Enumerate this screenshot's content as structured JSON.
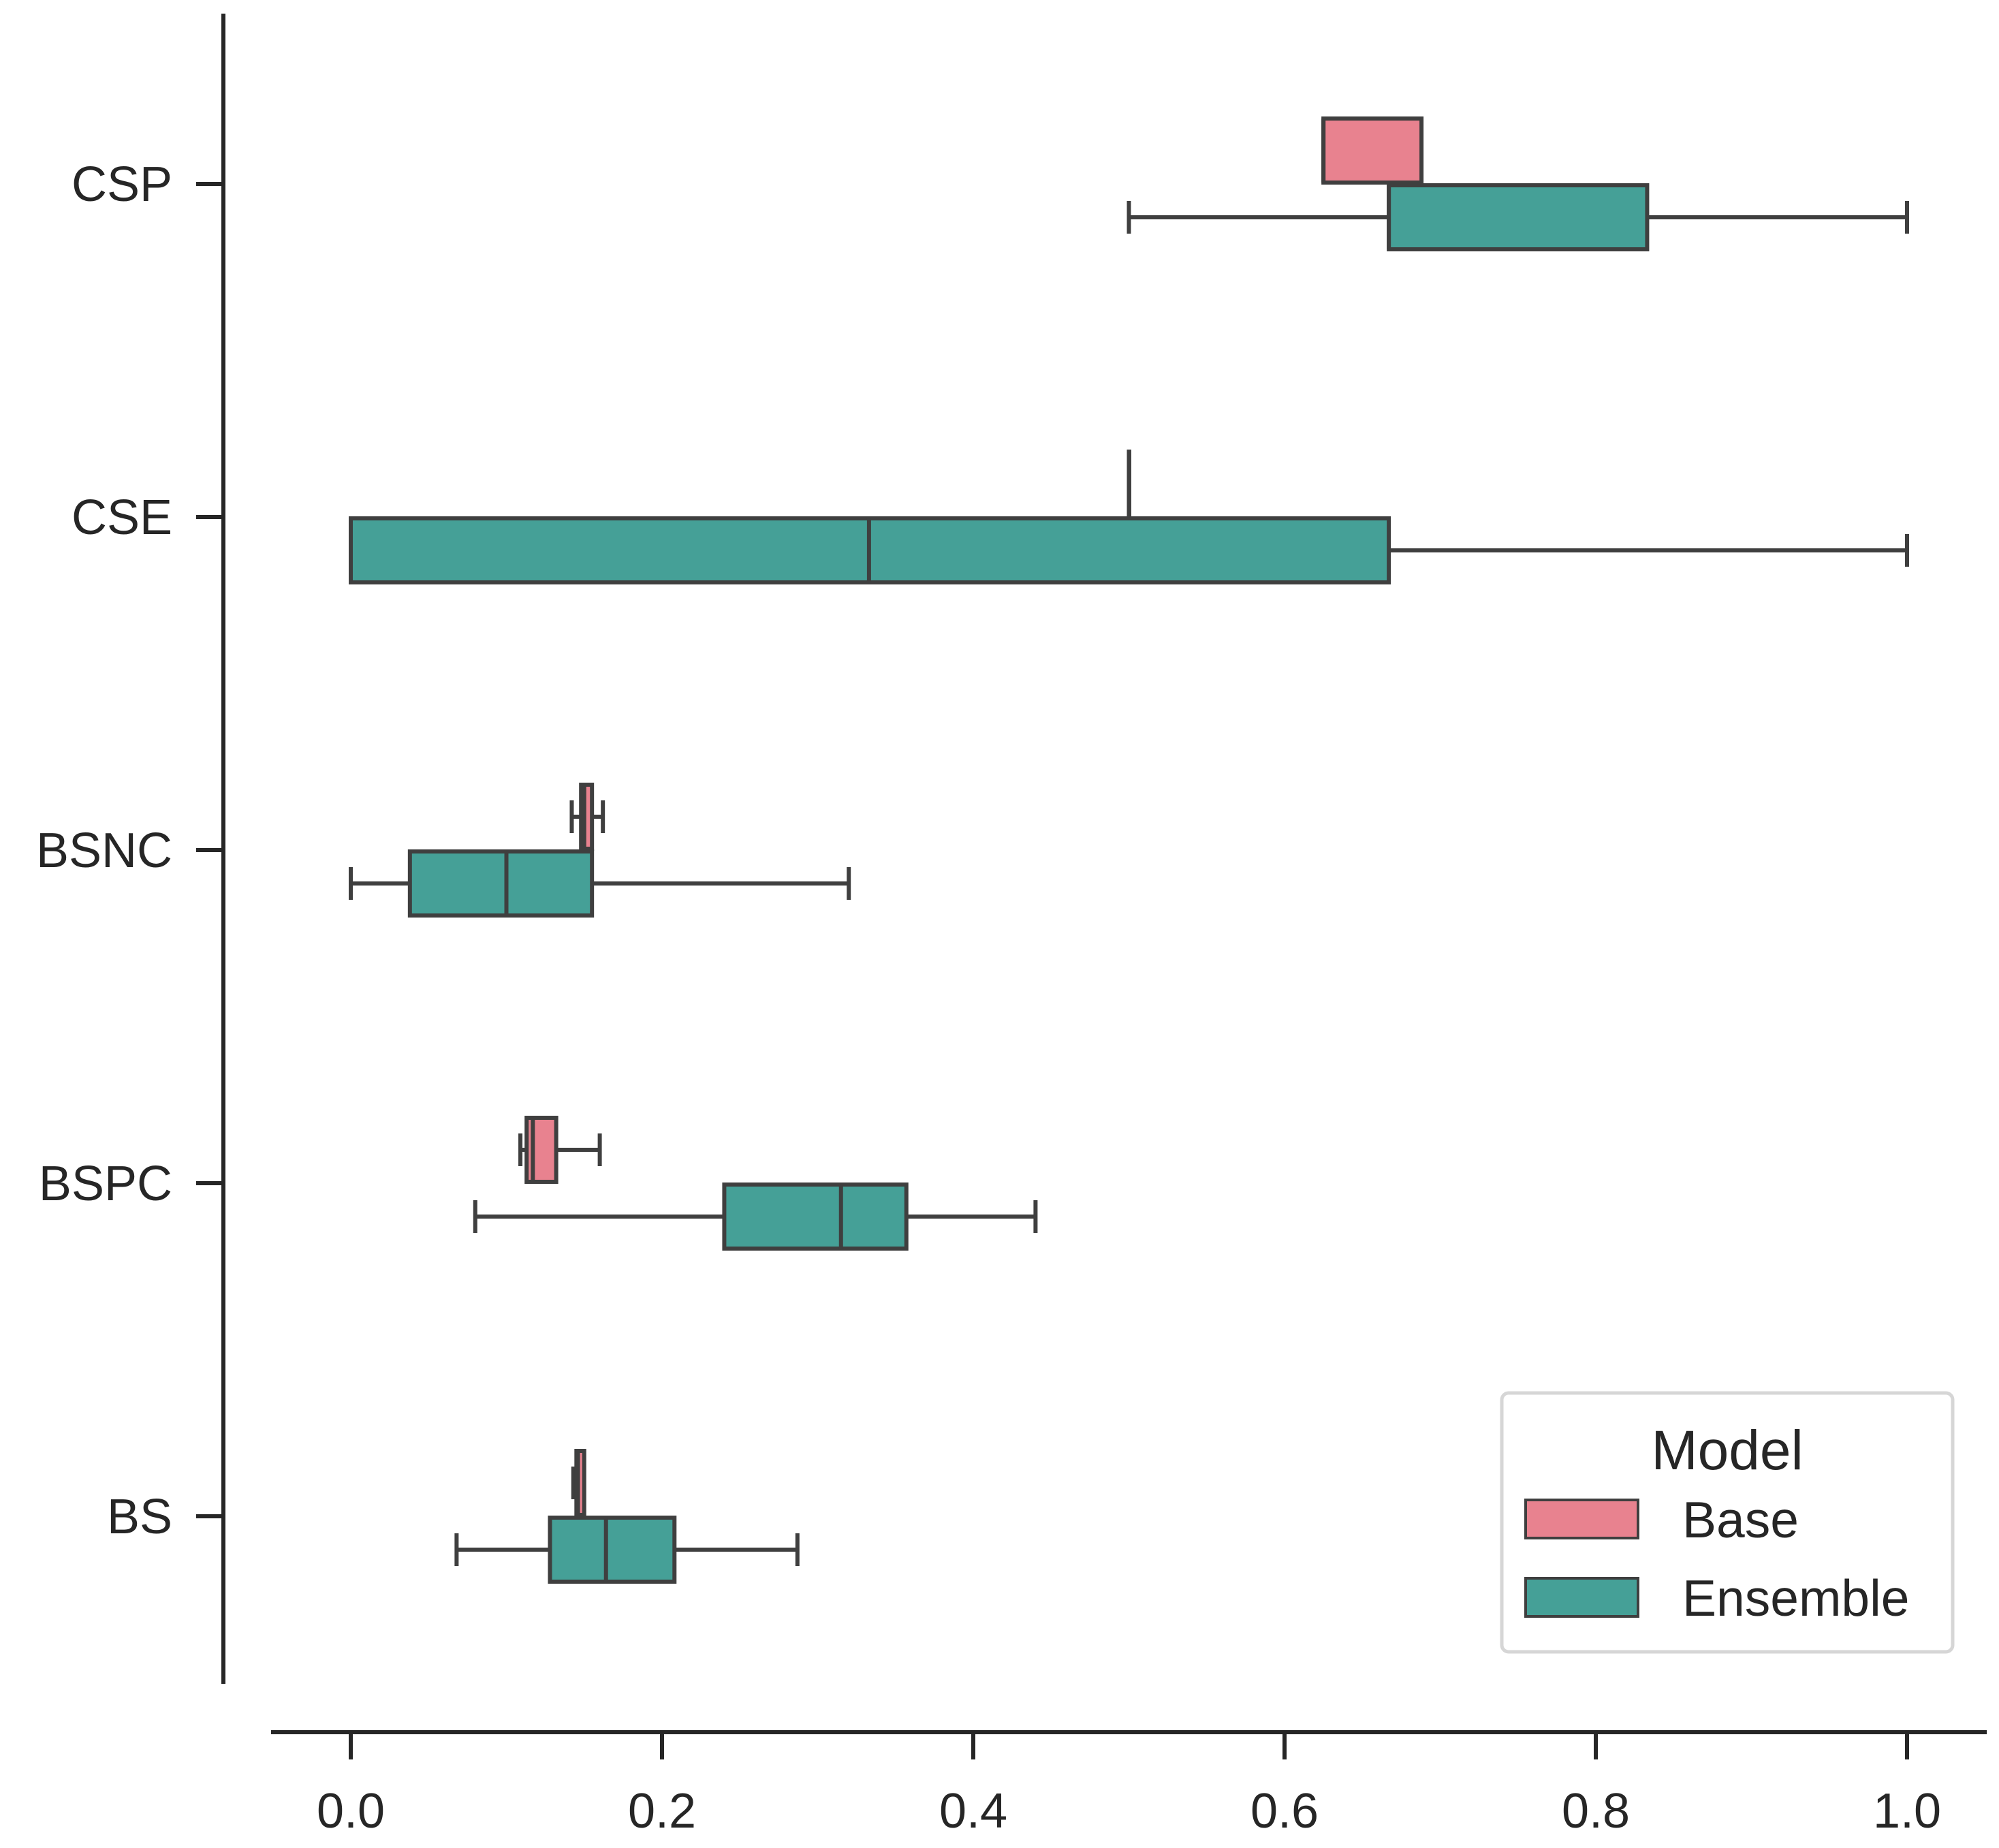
{
  "chart_data": {
    "type": "boxplot",
    "orientation": "horizontal",
    "title": "",
    "xlabel": "",
    "ylabel": "",
    "xlim": [
      -0.05,
      1.05
    ],
    "x_ticks": [
      0.0,
      0.2,
      0.4,
      0.6,
      0.8,
      1.0
    ],
    "x_tick_labels": [
      "0.0",
      "0.2",
      "0.4",
      "0.6",
      "0.8",
      "1.0"
    ],
    "categories": [
      "CSP",
      "CSE",
      "BSNC",
      "BSPC",
      "BS"
    ],
    "grid": false,
    "legend": {
      "title": "Model",
      "position": "bottom-right",
      "entries": [
        "Base",
        "Ensemble"
      ]
    },
    "series": [
      {
        "name": "Base",
        "color": "#e8828f",
        "boxes": [
          {
            "category": "CSP",
            "whisker_low": 0.625,
            "q1": 0.625,
            "median": 0.625,
            "q3": 0.688,
            "whisker_high": 0.688
          },
          {
            "category": "CSE",
            "whisker_low": 0.5,
            "q1": 0.5,
            "median": 0.5,
            "q3": 0.5,
            "whisker_high": 0.5
          },
          {
            "category": "BSNC",
            "whisker_low": 0.142,
            "q1": 0.148,
            "median": 0.15,
            "q3": 0.155,
            "whisker_high": 0.162
          },
          {
            "category": "BSPC",
            "whisker_low": 0.109,
            "q1": 0.113,
            "median": 0.117,
            "q3": 0.132,
            "whisker_high": 0.16
          },
          {
            "category": "BS",
            "whisker_low": 0.143,
            "q1": 0.145,
            "median": 0.146,
            "q3": 0.15,
            "whisker_high": 0.15
          }
        ]
      },
      {
        "name": "Ensemble",
        "color": "#45a097",
        "boxes": [
          {
            "category": "CSP",
            "whisker_low": 0.5,
            "q1": 0.667,
            "median": 0.667,
            "q3": 0.833,
            "whisker_high": 1.0
          },
          {
            "category": "CSE",
            "whisker_low": 0.0,
            "q1": 0.0,
            "median": 0.333,
            "q3": 0.667,
            "whisker_high": 1.0
          },
          {
            "category": "BSNC",
            "whisker_low": 0.0,
            "q1": 0.038,
            "median": 0.1,
            "q3": 0.155,
            "whisker_high": 0.32
          },
          {
            "category": "BSPC",
            "whisker_low": 0.08,
            "q1": 0.24,
            "median": 0.315,
            "q3": 0.357,
            "whisker_high": 0.44
          },
          {
            "category": "BS",
            "whisker_low": 0.068,
            "q1": 0.128,
            "median": 0.164,
            "q3": 0.208,
            "whisker_high": 0.287
          }
        ]
      }
    ]
  }
}
